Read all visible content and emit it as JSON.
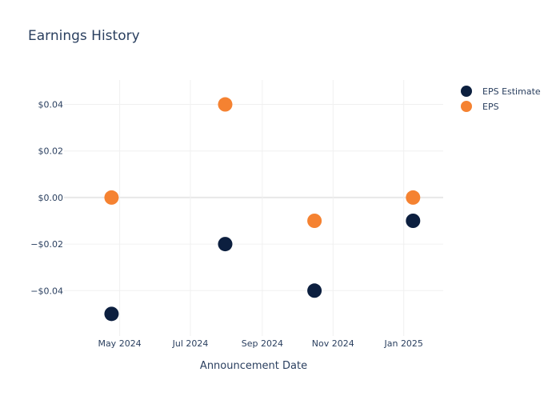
{
  "chart_data": {
    "type": "scatter",
    "title": "Earnings History",
    "xlabel": "Announcement Date",
    "ylabel": "",
    "x_range": [
      "2024-03-14",
      "2025-02-04"
    ],
    "ylim": [
      -0.0595,
      0.0505
    ],
    "x_ticks": [
      {
        "date": "2024-05-01",
        "label": "May 2024"
      },
      {
        "date": "2024-07-01",
        "label": "Jul 2024"
      },
      {
        "date": "2024-09-01",
        "label": "Sep 2024"
      },
      {
        "date": "2024-11-01",
        "label": "Nov 2024"
      },
      {
        "date": "2025-01-01",
        "label": "Jan 2025"
      }
    ],
    "y_ticks": [
      {
        "value": 0.04,
        "label": "$0.04"
      },
      {
        "value": 0.02,
        "label": "$0.02"
      },
      {
        "value": 0.0,
        "label": "$0.00"
      },
      {
        "value": -0.02,
        "label": "−$0.02"
      },
      {
        "value": -0.04,
        "label": "−$0.04"
      }
    ],
    "grid": true,
    "legend_position": "top-right",
    "series": [
      {
        "name": "EPS Estimate",
        "color": "#0c1f3f",
        "points": [
          {
            "x": "2024-04-24",
            "y": -0.05
          },
          {
            "x": "2024-07-31",
            "y": -0.02
          },
          {
            "x": "2024-10-16",
            "y": -0.04
          },
          {
            "x": "2025-01-09",
            "y": -0.01
          }
        ]
      },
      {
        "name": "EPS",
        "color": "#f58231",
        "points": [
          {
            "x": "2024-04-24",
            "y": 0.0
          },
          {
            "x": "2024-07-31",
            "y": 0.04
          },
          {
            "x": "2024-10-16",
            "y": -0.01
          },
          {
            "x": "2025-01-09",
            "y": 0.0
          }
        ]
      }
    ]
  }
}
